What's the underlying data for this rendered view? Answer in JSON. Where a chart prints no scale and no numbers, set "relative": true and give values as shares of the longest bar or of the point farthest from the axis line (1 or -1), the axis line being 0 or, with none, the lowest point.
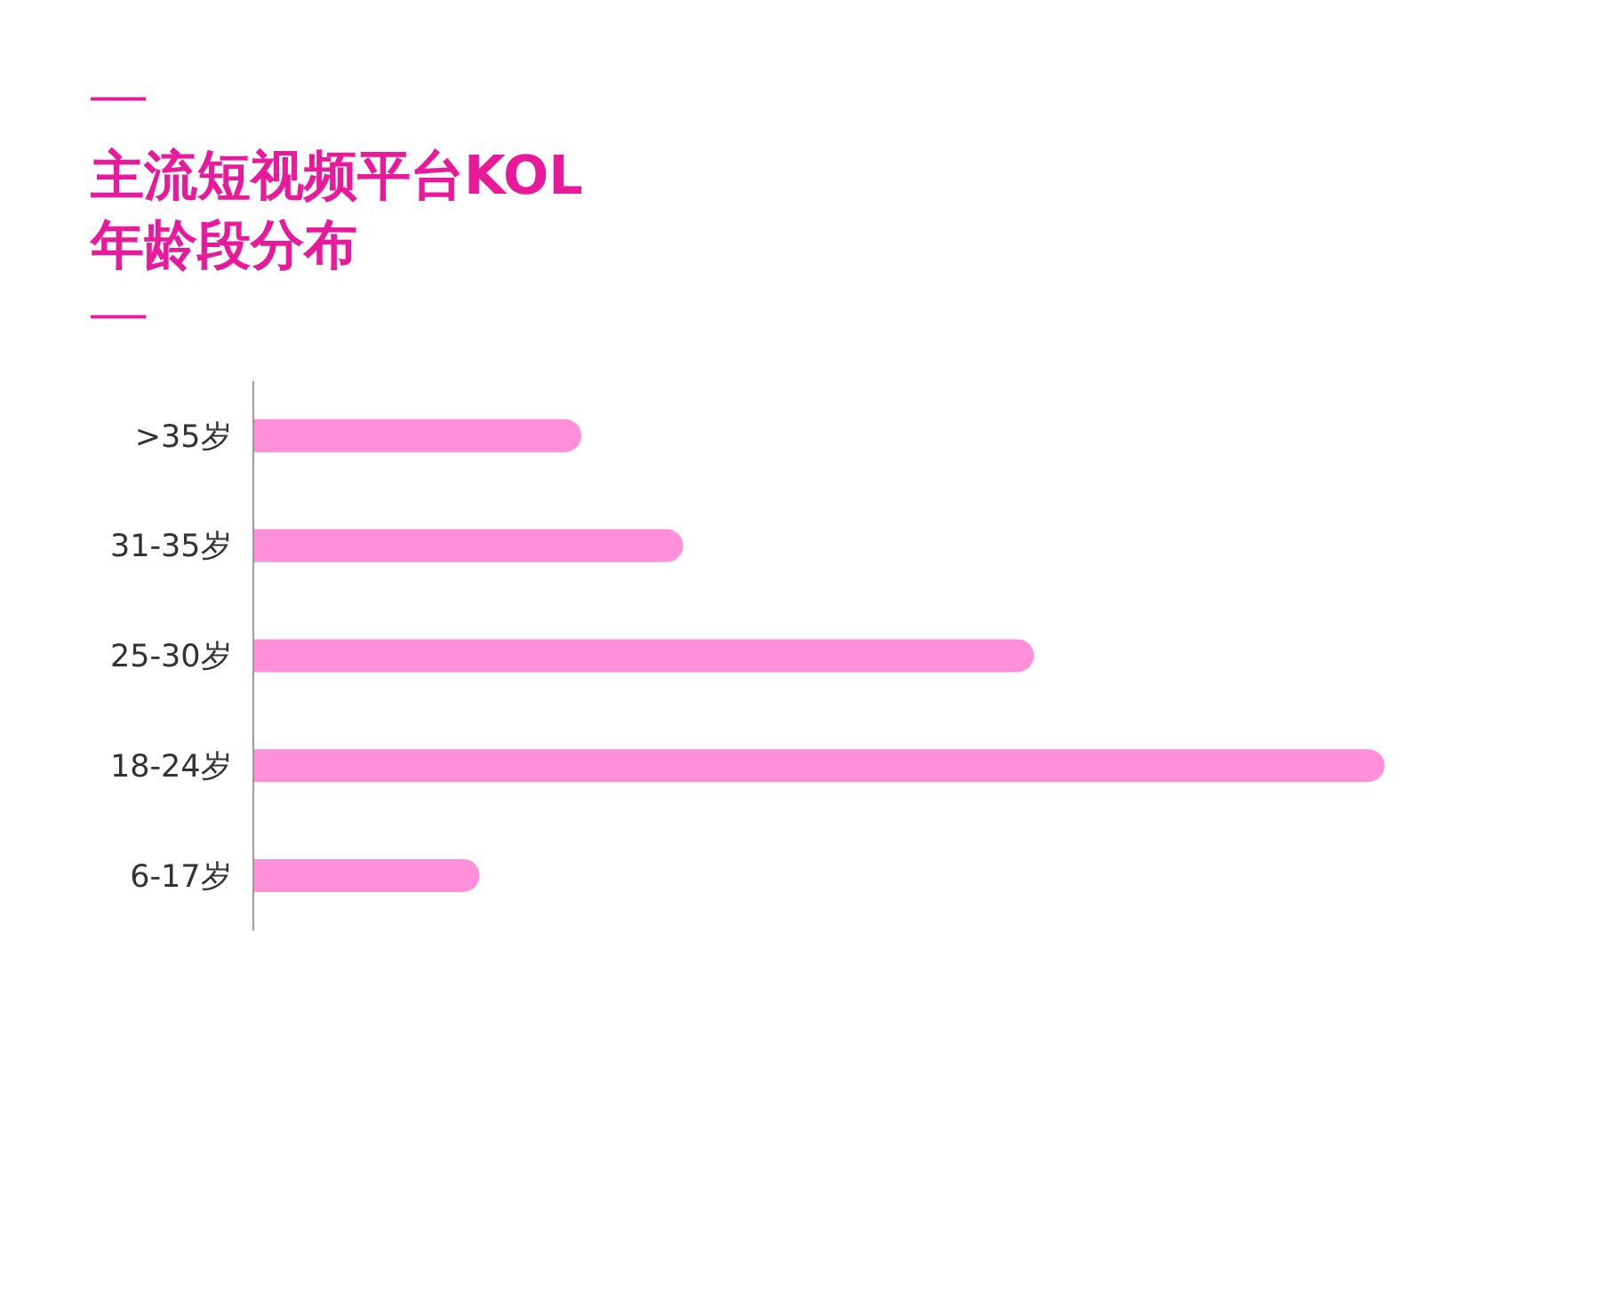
{
  "chart_data": {
    "type": "bar",
    "orientation": "horizontal",
    "relative": true,
    "title": "主流短视频平台KOL年龄段分布",
    "categories": [
      ">35岁",
      "31-35岁",
      "25-30岁",
      "18-24岁",
      "6-17岁"
    ],
    "values": [
      0.29,
      0.38,
      0.69,
      1,
      0.2
    ],
    "color": "#ff8fd8"
  }
}
